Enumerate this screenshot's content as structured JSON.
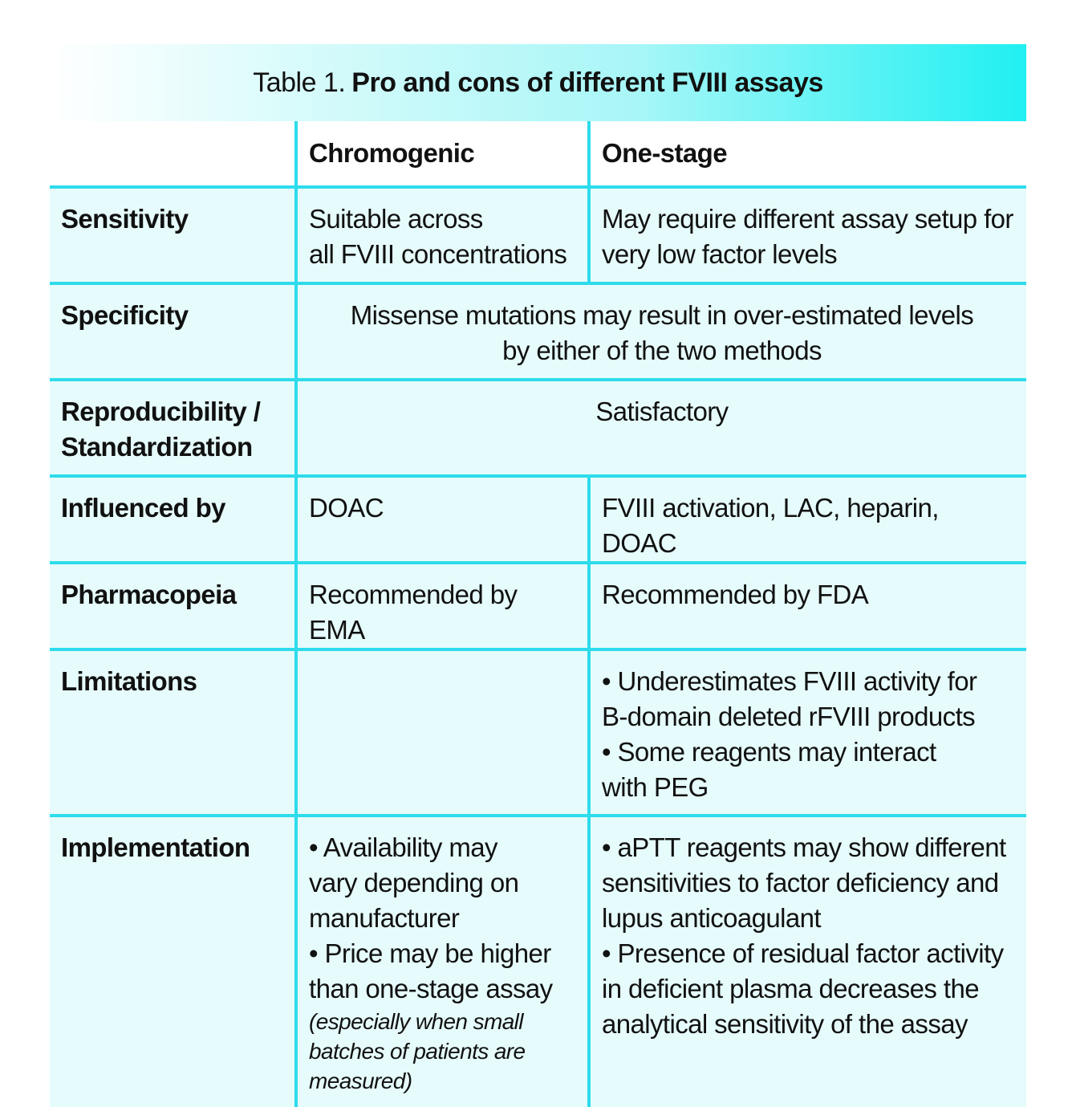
{
  "title": {
    "prefix": "Table 1.",
    "main": "Pro and cons of different FVIII assays"
  },
  "columns": {
    "c1": "Chromogenic",
    "c2": "One-stage"
  },
  "rows": {
    "sensitivity": {
      "label": "Sensitivity",
      "c1": [
        "Suitable across",
        "all FVIII concentrations"
      ],
      "c2": [
        "May require different assay setup for",
        "very low factor levels"
      ]
    },
    "specificity": {
      "label": "Specificity",
      "both": [
        "Missense mutations may result in over-estimated levels",
        "by either of the two methods"
      ]
    },
    "reproducibility": {
      "label": [
        "Reproducibility /",
        "Standardization"
      ],
      "both": "Satisfactory"
    },
    "influenced": {
      "label": "Influenced by",
      "c1": "DOAC",
      "c2": "FVIII activation, LAC, heparin, DOAC"
    },
    "pharmacopeia": {
      "label": "Pharmacopeia",
      "c1": "Recommended by EMA",
      "c2": "Recommended by FDA"
    },
    "limitations": {
      "label": "Limitations",
      "c1": "",
      "c2": [
        "• Underestimates FVIII activity for",
        "B-domain deleted rFVIII products",
        "• Some reagents may interact",
        "with PEG"
      ]
    },
    "implementation": {
      "label": "Implementation",
      "c1": [
        "• Availability may",
        "vary depending on",
        "manufacturer",
        "• Price may be higher",
        "than one-stage assay"
      ],
      "c1_note": [
        "(especially when small",
        "batches of patients are",
        "measured)"
      ],
      "c2": [
        "• aPTT reagents may show different",
        "sensitivities to factor deficiency and",
        "lupus anticoagulant",
        "• Presence of residual factor activity",
        "in deficient plasma decreases the",
        "analytical sensitivity of the assay"
      ]
    }
  }
}
